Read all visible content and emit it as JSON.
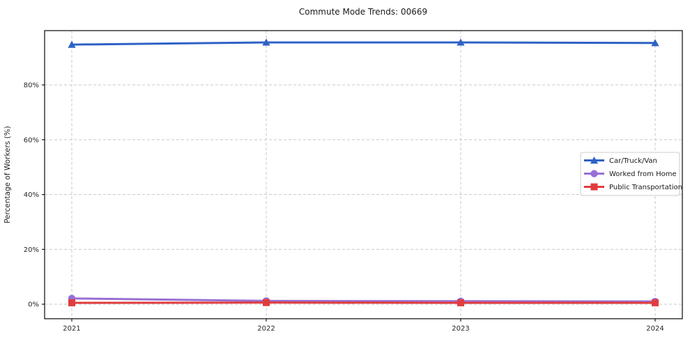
{
  "chart_data": {
    "type": "line",
    "title": "Commute Mode Trends: 00669",
    "xlabel": "",
    "ylabel": "Percentage of Workers (%)",
    "categories": [
      "2021",
      "2022",
      "2023",
      "2024"
    ],
    "series": [
      {
        "name": "Car/Truck/Van",
        "values": [
          94.7,
          95.5,
          95.5,
          95.3
        ],
        "color": "#2e62c6",
        "marker": "triangle"
      },
      {
        "name": "Worked from Home",
        "values": [
          2.1,
          1.2,
          1.1,
          1.0
        ],
        "color": "#9770d4",
        "marker": "circle"
      },
      {
        "name": "Public Transportation",
        "values": [
          0.5,
          0.6,
          0.5,
          0.5
        ],
        "color": "#e03c3f",
        "marker": "square"
      }
    ],
    "yticks": [
      0,
      20,
      40,
      60,
      80
    ],
    "ytick_labels": [
      "0%",
      "20%",
      "40%",
      "60%",
      "80%"
    ],
    "ylim": [
      -5.3,
      99.8
    ],
    "grid": true,
    "grid_style": "dashed",
    "legend_position": "center-right",
    "colors": {
      "grid": "#c9c9c9",
      "axis": "#1a1a1a",
      "text": "#262626",
      "legend_border": "#cccccc",
      "legend_bg": "#ffffff",
      "background": "#ffffff"
    }
  }
}
